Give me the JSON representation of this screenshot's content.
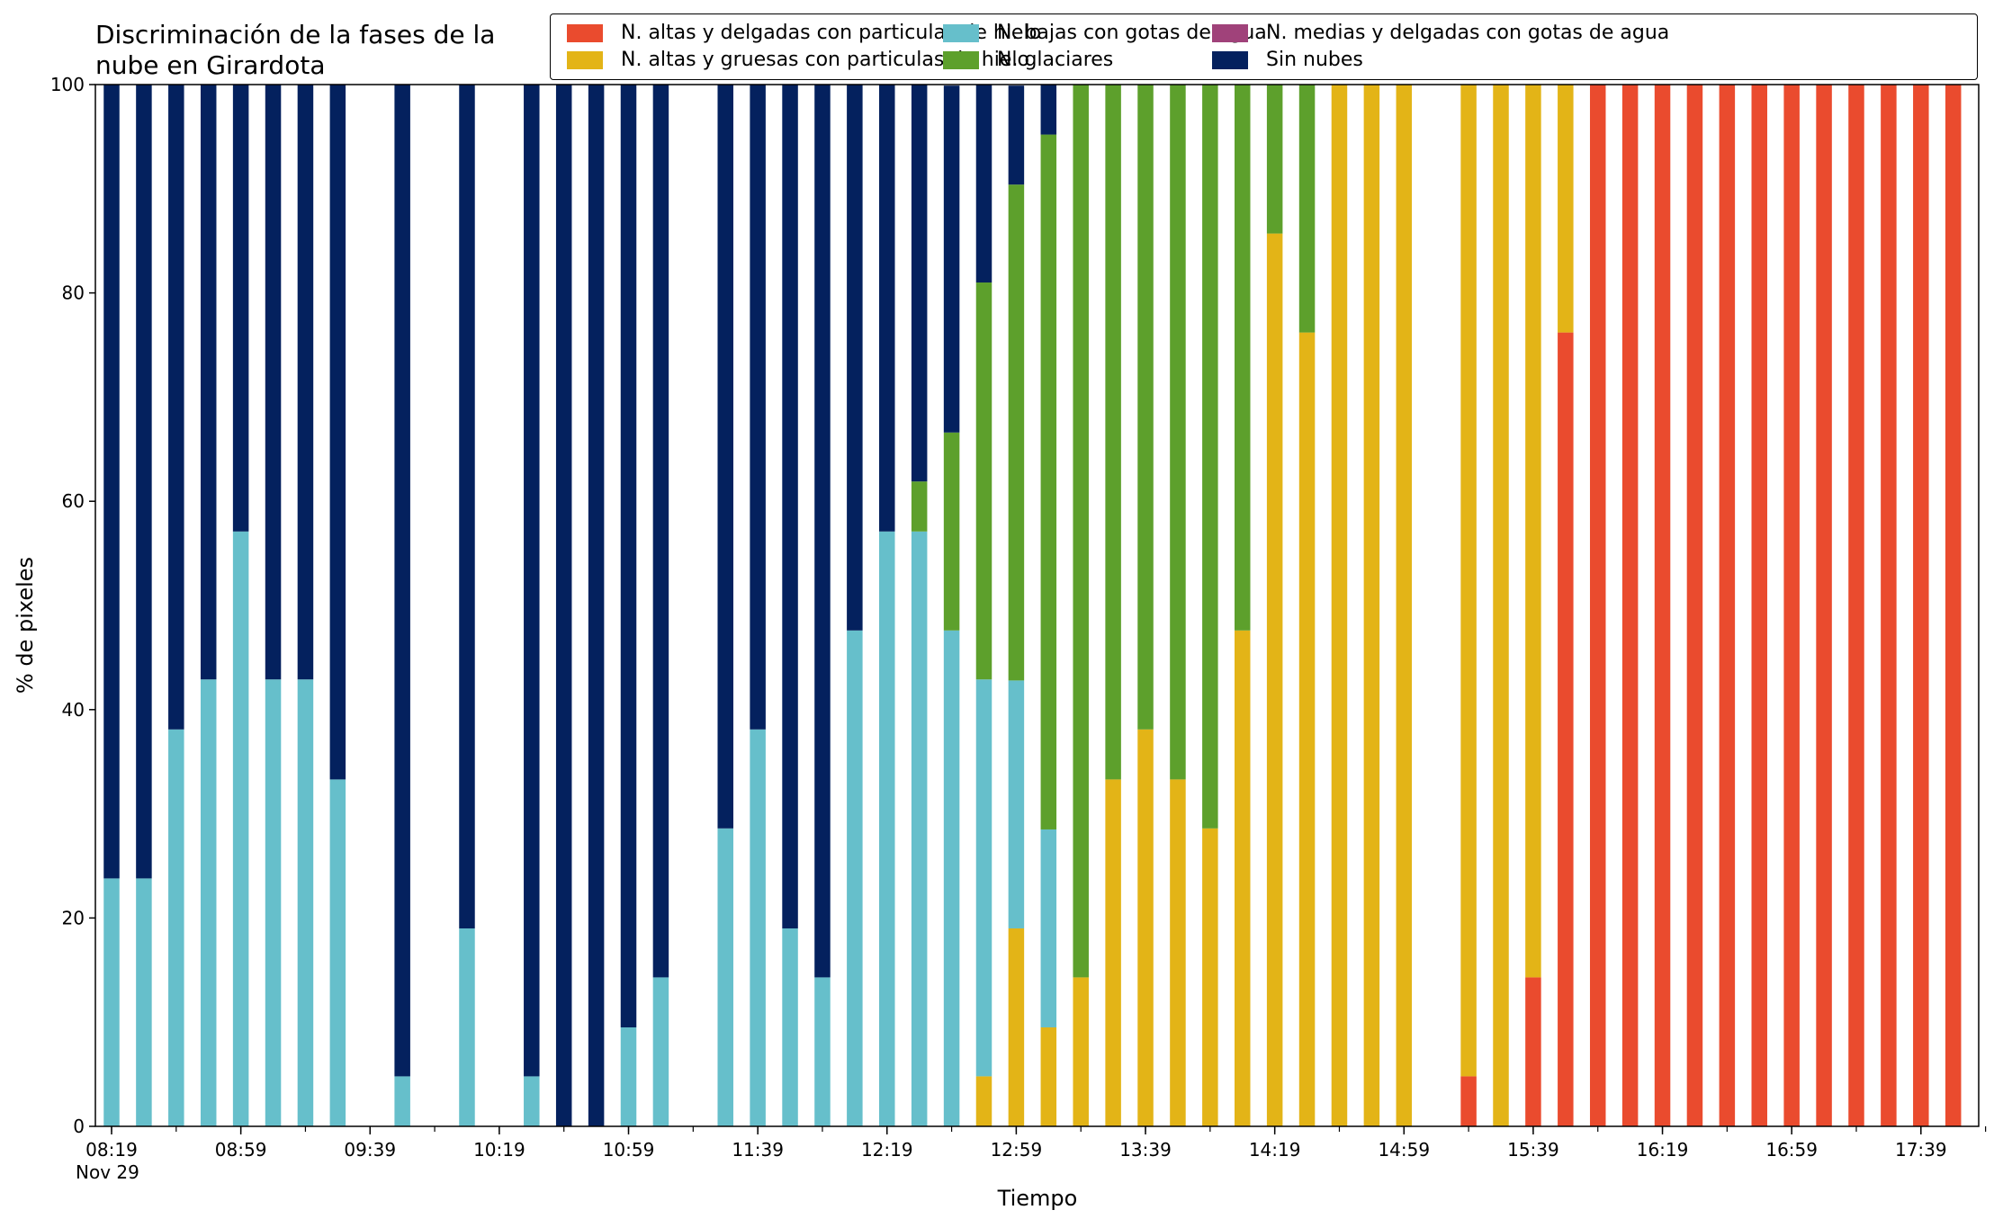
{
  "chart_data": {
    "type": "bar",
    "stacked": true,
    "title": "Discriminación de la fases de la\nnube en Girardota",
    "xlabel": "Tiempo",
    "ylabel": "% de pixeles",
    "ylim": [
      0,
      100
    ],
    "yticks": [
      0,
      20,
      40,
      60,
      80,
      100
    ],
    "grid": false,
    "legend_position": "top-right",
    "x_start": "08:19",
    "x_end": "17:59",
    "x_step_minutes": 10,
    "xtick_labels": [
      {
        "time": "08:19",
        "label": "08:19",
        "sublabel": "Nov 29"
      },
      {
        "time": "08:59",
        "label": "08:59"
      },
      {
        "time": "09:39",
        "label": "09:39"
      },
      {
        "time": "10:19",
        "label": "10:19"
      },
      {
        "time": "10:59",
        "label": "10:59"
      },
      {
        "time": "11:39",
        "label": "11:39"
      },
      {
        "time": "12:19",
        "label": "12:19"
      },
      {
        "time": "12:59",
        "label": "12:59"
      },
      {
        "time": "13:39",
        "label": "13:39"
      },
      {
        "time": "14:19",
        "label": "14:19"
      },
      {
        "time": "14:59",
        "label": "14:59"
      },
      {
        "time": "15:39",
        "label": "15:39"
      },
      {
        "time": "16:19",
        "label": "16:19"
      },
      {
        "time": "16:59",
        "label": "16:59"
      },
      {
        "time": "17:39",
        "label": "17:39"
      }
    ],
    "x": [
      "08:19",
      "08:29",
      "08:39",
      "08:49",
      "08:59",
      "09:09",
      "09:19",
      "09:29",
      "09:39",
      "09:49",
      "09:59",
      "10:09",
      "10:19",
      "10:29",
      "10:39",
      "10:49",
      "10:59",
      "11:09",
      "11:19",
      "11:29",
      "11:39",
      "11:49",
      "11:59",
      "12:09",
      "12:19",
      "12:29",
      "12:39",
      "12:49",
      "12:59",
      "13:09",
      "13:19",
      "13:29",
      "13:39",
      "13:49",
      "13:59",
      "14:09",
      "14:19",
      "14:29",
      "14:39",
      "14:49",
      "14:59",
      "15:09",
      "15:19",
      "15:29",
      "15:39",
      "15:49",
      "15:59",
      "16:09",
      "16:19",
      "16:29",
      "16:39",
      "16:49",
      "16:59",
      "17:09",
      "17:19",
      "17:29",
      "17:39",
      "17:49"
    ],
    "series": [
      {
        "name": "N. altas y delgadas con particulas de hielo",
        "color": "#EA4B2E",
        "values": [
          0,
          0,
          0,
          0,
          0,
          0,
          0,
          0,
          0,
          0,
          0,
          0,
          0,
          0,
          0,
          0,
          0,
          0,
          0,
          0,
          0,
          0,
          0,
          0,
          0,
          0,
          0,
          0,
          0,
          0,
          0,
          0,
          0,
          0,
          0,
          0,
          0,
          0,
          0,
          0,
          0,
          0,
          4.8,
          0,
          14.3,
          76.2,
          100,
          100,
          100,
          100,
          100,
          100,
          100,
          100,
          100,
          100,
          100,
          100
        ]
      },
      {
        "name": "N. altas y gruesas con particulas de hielo",
        "color": "#E3B417",
        "values": [
          0,
          0,
          0,
          0,
          0,
          0,
          0,
          0,
          0,
          0,
          0,
          0,
          0,
          0,
          0,
          0,
          0,
          0,
          0,
          0,
          0,
          0,
          0,
          0,
          0,
          0,
          0,
          4.8,
          19,
          9.5,
          14.3,
          33.3,
          38.1,
          33.3,
          28.6,
          47.6,
          85.7,
          76.2,
          100,
          100,
          100,
          0,
          95.2,
          100,
          85.7,
          23.8,
          0,
          0,
          0,
          0,
          0,
          0,
          0,
          0,
          0,
          0,
          0,
          0
        ]
      },
      {
        "name": "N. medias y delgadas con gotas de agua",
        "color": "#A0427A",
        "values": [
          0,
          0,
          0,
          0,
          0,
          0,
          0,
          0,
          0,
          0,
          0,
          0,
          0,
          0,
          0,
          0,
          0,
          0,
          0,
          0,
          0,
          0,
          0,
          0,
          0,
          0,
          0,
          0,
          0,
          0,
          0,
          0,
          0,
          0,
          0,
          0,
          0,
          0,
          0,
          0,
          0,
          0,
          0,
          0,
          0,
          0,
          0,
          0,
          0,
          0,
          0,
          0,
          0,
          0,
          0,
          0,
          0,
          0
        ]
      },
      {
        "name": "N. bajas con gotas de agua",
        "color": "#66BFCB",
        "values": [
          23.8,
          23.8,
          38.1,
          42.9,
          57.1,
          42.9,
          42.9,
          33.3,
          0,
          4.8,
          0,
          19,
          0,
          4.8,
          0,
          0,
          9.5,
          14.3,
          0,
          28.6,
          38.1,
          19,
          14.3,
          47.6,
          57.1,
          57.1,
          47.6,
          38.1,
          23.8,
          19,
          0,
          0,
          0,
          0,
          0,
          0,
          0,
          0,
          0,
          0,
          0,
          0,
          0,
          0,
          0,
          0,
          0,
          0,
          0,
          0,
          0,
          0,
          0,
          0,
          0,
          0,
          0,
          0
        ]
      },
      {
        "name": "N. glaciares",
        "color": "#5DA02C",
        "values": [
          0,
          0,
          0,
          0,
          0,
          0,
          0,
          0,
          0,
          0,
          0,
          0,
          0,
          0,
          0,
          0,
          0,
          0,
          0,
          0,
          0,
          0,
          0,
          0,
          0,
          4.8,
          19,
          38.1,
          47.6,
          66.7,
          85.7,
          66.7,
          61.9,
          66.7,
          71.4,
          52.4,
          14.3,
          23.8,
          0,
          0,
          0,
          0,
          0,
          0,
          0,
          0,
          0,
          0,
          0,
          0,
          0,
          0,
          0,
          0,
          0,
          0,
          0,
          0
        ]
      },
      {
        "name": "Sin nubes",
        "color": "#04215E",
        "values": [
          76.2,
          76.2,
          61.9,
          57.1,
          42.9,
          57.1,
          57.1,
          66.7,
          0,
          95.2,
          0,
          81,
          0,
          95.2,
          100,
          100,
          90.5,
          85.7,
          0,
          71.4,
          61.9,
          81,
          85.7,
          52.4,
          42.9,
          38.1,
          33.3,
          19,
          9.5,
          4.8,
          0,
          0,
          0,
          0,
          0,
          0,
          0,
          0,
          0,
          0,
          0,
          0,
          0,
          0,
          0,
          0,
          0,
          0,
          0,
          0,
          0,
          0,
          0,
          0,
          0,
          0,
          0,
          0
        ]
      }
    ]
  },
  "legend_items": [
    {
      "label": "N. altas y delgadas con particulas de hielo",
      "color": "#EA4B2E",
      "series_index": 0
    },
    {
      "label": "N. altas y gruesas con particulas de hielo",
      "color": "#E3B417",
      "series_index": 1
    },
    {
      "label": "N. bajas con gotas de agua",
      "color": "#66BFCB",
      "series_index": 3
    },
    {
      "label": "N. glaciares",
      "color": "#5DA02C",
      "series_index": 4
    },
    {
      "label": "N. medias y delgadas con gotas de agua",
      "color": "#A0427A",
      "series_index": 2
    },
    {
      "label": "Sin nubes",
      "color": "#04215E",
      "series_index": 5
    }
  ]
}
